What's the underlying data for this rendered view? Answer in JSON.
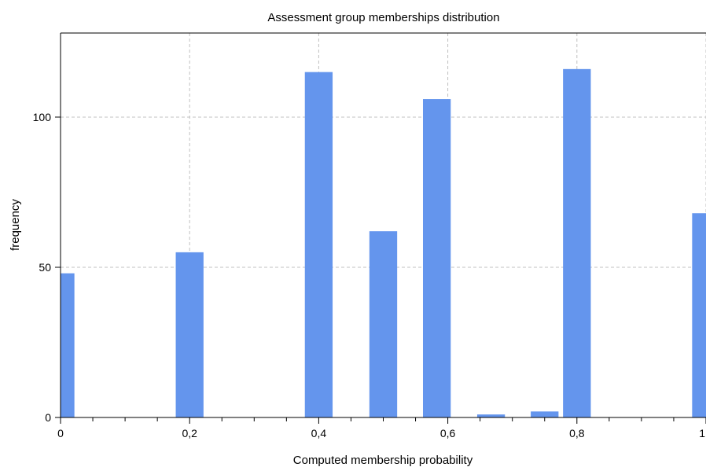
{
  "chart_data": {
    "type": "bar",
    "title": "Assessment group memberships distribution",
    "xlabel": "Computed membership probability",
    "ylabel": "frequency",
    "xlim": [
      0,
      1
    ],
    "ylim": [
      0,
      128
    ],
    "x_ticks": [
      {
        "value": 0,
        "label": "0"
      },
      {
        "value": 0.2,
        "label": "0,2"
      },
      {
        "value": 0.4,
        "label": "0,4"
      },
      {
        "value": 0.6,
        "label": "0,6"
      },
      {
        "value": 0.8,
        "label": "0,8"
      },
      {
        "value": 1.0,
        "label": "1"
      }
    ],
    "y_ticks": [
      {
        "value": 0,
        "label": "0"
      },
      {
        "value": 50,
        "label": "50"
      },
      {
        "value": 100,
        "label": "100"
      }
    ],
    "bar_width": 0.043,
    "bars": [
      {
        "x": 0.0,
        "value": 48
      },
      {
        "x": 0.2,
        "value": 55
      },
      {
        "x": 0.4,
        "value": 115
      },
      {
        "x": 0.5,
        "value": 62
      },
      {
        "x": 0.583,
        "value": 106
      },
      {
        "x": 0.667,
        "value": 1
      },
      {
        "x": 0.75,
        "value": 2
      },
      {
        "x": 0.8,
        "value": 116
      },
      {
        "x": 1.0,
        "value": 68
      }
    ],
    "bar_color": "#6495ED",
    "grid": true
  }
}
